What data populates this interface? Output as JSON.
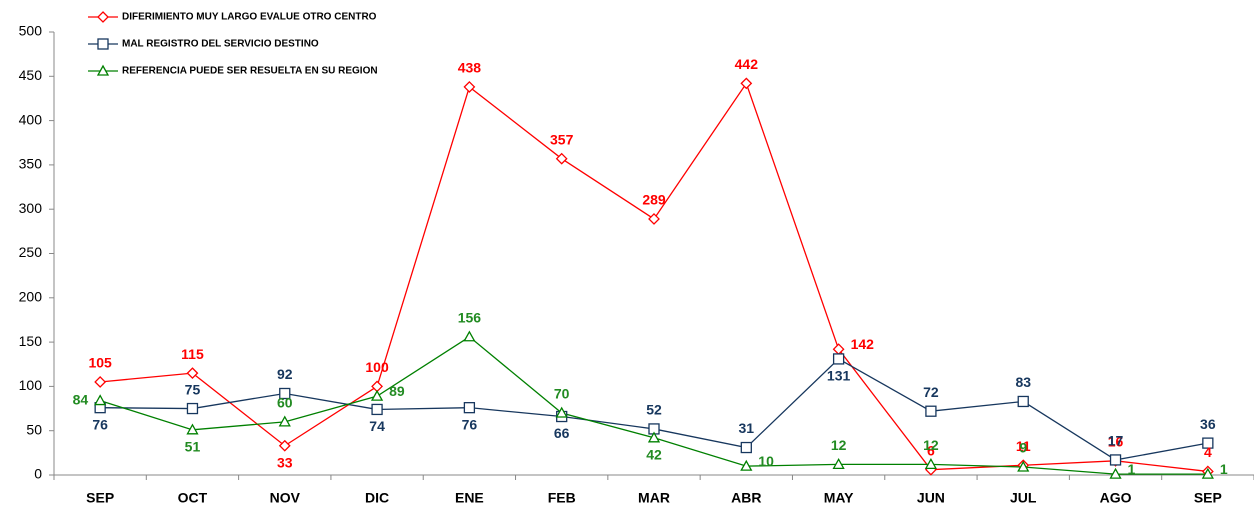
{
  "chart_data": {
    "type": "line",
    "categories": [
      "SEP",
      "OCT",
      "NOV",
      "DIC",
      "ENE",
      "FEB",
      "MAR",
      "ABR",
      "MAY",
      "JUN",
      "JUL",
      "AGO",
      "SEP"
    ],
    "series": [
      {
        "name": "DIFERIMIENTO MUY LARGO EVALUE OTRO CENTRO",
        "color": "#ff0000",
        "marker": "diamond",
        "values": [
          105,
          115,
          33,
          100,
          438,
          357,
          289,
          442,
          142,
          6,
          11,
          16,
          4
        ]
      },
      {
        "name": "MAL REGISTRO DEL SERVICIO DESTINO",
        "color": "#17375e",
        "marker": "square",
        "values": [
          76,
          75,
          92,
          74,
          76,
          66,
          52,
          31,
          131,
          72,
          83,
          17,
          36
        ]
      },
      {
        "name": "REFERENCIA PUEDE SER RESUELTA EN SU REGION",
        "color": "#008000",
        "marker": "triangle",
        "values": [
          84,
          51,
          60,
          89,
          156,
          70,
          42,
          10,
          12,
          12,
          9,
          1,
          1
        ]
      }
    ],
    "ylim": [
      0,
      500
    ],
    "yticks": [
      0,
      50,
      100,
      150,
      200,
      250,
      300,
      350,
      400,
      450,
      500
    ],
    "legend": "top-left",
    "data_labels": true
  }
}
